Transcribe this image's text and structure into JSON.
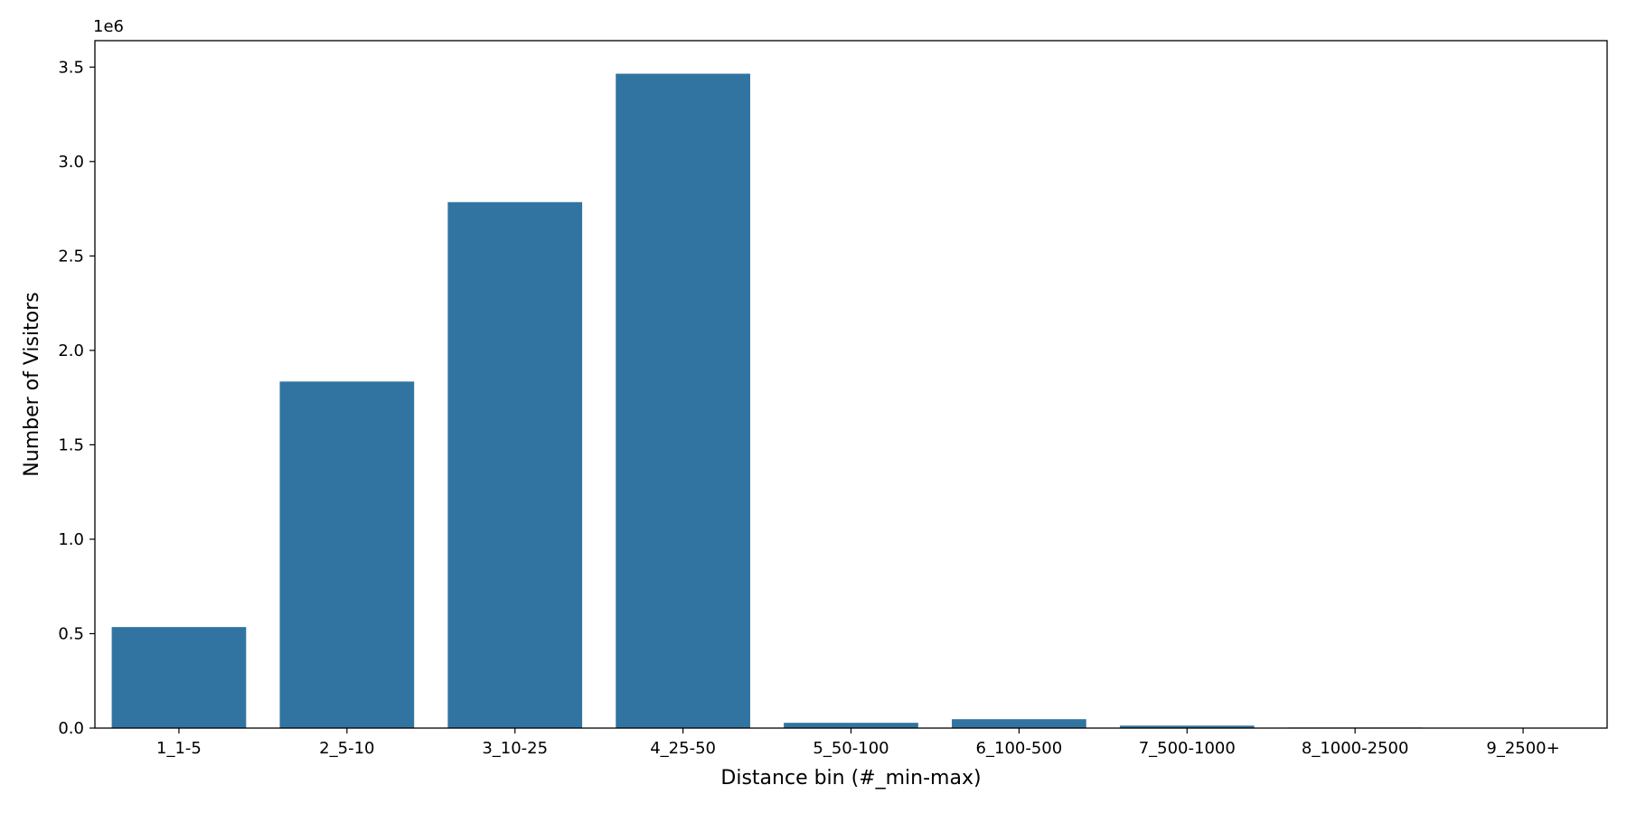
{
  "chart_data": {
    "type": "bar",
    "title": "",
    "xlabel": "Distance bin (#_min-max)",
    "ylabel": "Number of Visitors",
    "y_offset_label": "1e6",
    "categories": [
      "1_1-5",
      "2_5-10",
      "3_10-25",
      "4_25-50",
      "5_50-100",
      "6_100-500",
      "7_500-1000",
      "8_1000-2500",
      "9_2500+"
    ],
    "values": [
      535000,
      1835000,
      2785000,
      3465000,
      28000,
      47000,
      13000,
      3000,
      1000
    ],
    "yticks": [
      0,
      500000,
      1000000,
      1500000,
      2000000,
      2500000,
      3000000,
      3500000
    ],
    "ytick_labels": [
      "0.0",
      "0.5",
      "1.0",
      "1.5",
      "2.0",
      "2.5",
      "3.0",
      "3.5"
    ],
    "ylim": [
      0,
      3640000
    ],
    "grid": false,
    "bar_color": "#3274a1"
  }
}
